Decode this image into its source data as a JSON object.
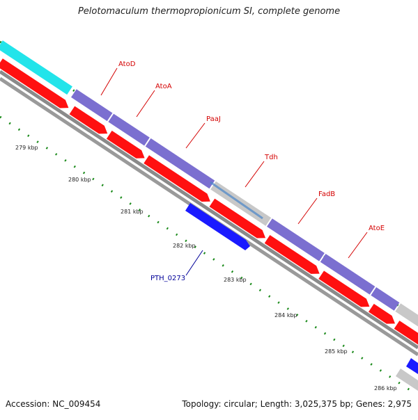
{
  "title": "Pelotomaculum thermopropionicum SI, complete genome",
  "accession_label": "Accession: NC_009454",
  "summary_label": "Topology: circular; Length: 3,025,375 bp; Genes: 2,975",
  "colors": {
    "forward_gene": "#7b6fd0",
    "cds": "#ff1010",
    "highlight": "#22e4ea",
    "gray_gene": "#c8c8c8",
    "reverse_gene": "#1a1aff",
    "backbone": "#888888",
    "tick": "#1a8a1a",
    "label_red": "#d40000",
    "label_blue": "#000099"
  },
  "genes": [
    {
      "label": "AtoD"
    },
    {
      "label": "AtoA"
    },
    {
      "label": "PaaJ"
    },
    {
      "label": "Tdh"
    },
    {
      "label": "FadB"
    },
    {
      "label": "AtoE"
    },
    {
      "label": "PTH_0273"
    }
  ],
  "scale_labels": [
    "279 kbp",
    "280 kbp",
    "281 kbp",
    "282 kbp",
    "283 kbp",
    "284 kbp",
    "285 kbp",
    "286 kbp"
  ]
}
